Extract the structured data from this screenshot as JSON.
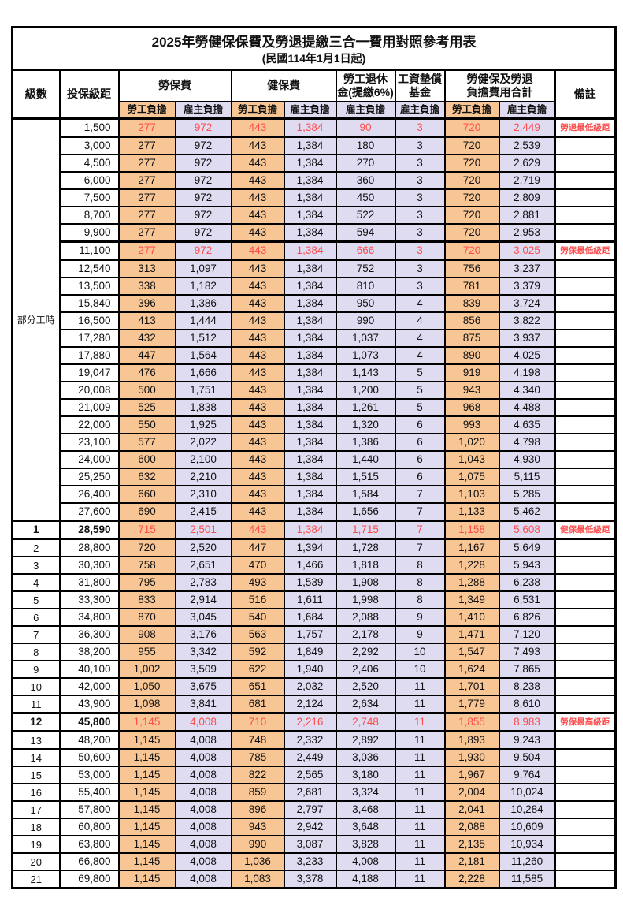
{
  "title": "2025年勞健保保費及勞退提繳三合一費用對照參考用表",
  "subtitle": "(民國114年1月1日起)",
  "header": {
    "level": "級數",
    "bracket": "投保級距",
    "labor_insurance": "勞保費",
    "health_insurance": "健保費",
    "pension_line1": "勞工退休",
    "pension_line2": "金(提繳6%)",
    "wage_fund_line1": "工資墊償",
    "wage_fund_line2": "基金",
    "total_line1": "勞健保及勞退",
    "total_line2": "負擔費用合計",
    "remarks": "備註",
    "employee": "勞工負擔",
    "employer": "雇主負擔"
  },
  "part_time": {
    "label": "部分工時",
    "rowspan": 23
  },
  "colors": {
    "employee_bg": "#F8C695",
    "employer_bg": "#DFDCF2",
    "highlight_text": "#FF4B4B",
    "border": "#000000"
  },
  "rows": [
    {
      "level": "",
      "bracket": "1,500",
      "cells": [
        "277",
        "972",
        "443",
        "1,384",
        "90",
        "3",
        "720",
        "2,449"
      ],
      "remark": "勞退最低級距",
      "red": true,
      "bold": false
    },
    {
      "level": "",
      "bracket": "3,000",
      "cells": [
        "277",
        "972",
        "443",
        "1,384",
        "180",
        "3",
        "720",
        "2,539"
      ],
      "remark": "",
      "red": false,
      "bold": false
    },
    {
      "level": "",
      "bracket": "4,500",
      "cells": [
        "277",
        "972",
        "443",
        "1,384",
        "270",
        "3",
        "720",
        "2,629"
      ],
      "remark": "",
      "red": false,
      "bold": false
    },
    {
      "level": "",
      "bracket": "6,000",
      "cells": [
        "277",
        "972",
        "443",
        "1,384",
        "360",
        "3",
        "720",
        "2,719"
      ],
      "remark": "",
      "red": false,
      "bold": false
    },
    {
      "level": "",
      "bracket": "7,500",
      "cells": [
        "277",
        "972",
        "443",
        "1,384",
        "450",
        "3",
        "720",
        "2,809"
      ],
      "remark": "",
      "red": false,
      "bold": false
    },
    {
      "level": "",
      "bracket": "8,700",
      "cells": [
        "277",
        "972",
        "443",
        "1,384",
        "522",
        "3",
        "720",
        "2,881"
      ],
      "remark": "",
      "red": false,
      "bold": false
    },
    {
      "level": "",
      "bracket": "9,900",
      "cells": [
        "277",
        "972",
        "443",
        "1,384",
        "594",
        "3",
        "720",
        "2,953"
      ],
      "remark": "",
      "red": false,
      "bold": false
    },
    {
      "level": "",
      "bracket": "11,100",
      "cells": [
        "277",
        "972",
        "443",
        "1,384",
        "666",
        "3",
        "720",
        "3,025"
      ],
      "remark": "勞保最低級距",
      "red": true,
      "bold": false
    },
    {
      "level": "",
      "bracket": "12,540",
      "cells": [
        "313",
        "1,097",
        "443",
        "1,384",
        "752",
        "3",
        "756",
        "3,237"
      ],
      "remark": "",
      "red": false,
      "bold": false
    },
    {
      "level": "",
      "bracket": "13,500",
      "cells": [
        "338",
        "1,182",
        "443",
        "1,384",
        "810",
        "3",
        "781",
        "3,379"
      ],
      "remark": "",
      "red": false,
      "bold": false
    },
    {
      "level": "",
      "bracket": "15,840",
      "cells": [
        "396",
        "1,386",
        "443",
        "1,384",
        "950",
        "4",
        "839",
        "3,724"
      ],
      "remark": "",
      "red": false,
      "bold": false
    },
    {
      "level": "",
      "bracket": "16,500",
      "cells": [
        "413",
        "1,444",
        "443",
        "1,384",
        "990",
        "4",
        "856",
        "3,822"
      ],
      "remark": "",
      "red": false,
      "bold": false
    },
    {
      "level": "",
      "bracket": "17,280",
      "cells": [
        "432",
        "1,512",
        "443",
        "1,384",
        "1,037",
        "4",
        "875",
        "3,937"
      ],
      "remark": "",
      "red": false,
      "bold": false
    },
    {
      "level": "",
      "bracket": "17,880",
      "cells": [
        "447",
        "1,564",
        "443",
        "1,384",
        "1,073",
        "4",
        "890",
        "4,025"
      ],
      "remark": "",
      "red": false,
      "bold": false
    },
    {
      "level": "",
      "bracket": "19,047",
      "cells": [
        "476",
        "1,666",
        "443",
        "1,384",
        "1,143",
        "5",
        "919",
        "4,198"
      ],
      "remark": "",
      "red": false,
      "bold": false
    },
    {
      "level": "",
      "bracket": "20,008",
      "cells": [
        "500",
        "1,751",
        "443",
        "1,384",
        "1,200",
        "5",
        "943",
        "4,340"
      ],
      "remark": "",
      "red": false,
      "bold": false
    },
    {
      "level": "",
      "bracket": "21,009",
      "cells": [
        "525",
        "1,838",
        "443",
        "1,384",
        "1,261",
        "5",
        "968",
        "4,488"
      ],
      "remark": "",
      "red": false,
      "bold": false
    },
    {
      "level": "",
      "bracket": "22,000",
      "cells": [
        "550",
        "1,925",
        "443",
        "1,384",
        "1,320",
        "6",
        "993",
        "4,635"
      ],
      "remark": "",
      "red": false,
      "bold": false
    },
    {
      "level": "",
      "bracket": "23,100",
      "cells": [
        "577",
        "2,022",
        "443",
        "1,384",
        "1,386",
        "6",
        "1,020",
        "4,798"
      ],
      "remark": "",
      "red": false,
      "bold": false
    },
    {
      "level": "",
      "bracket": "24,000",
      "cells": [
        "600",
        "2,100",
        "443",
        "1,384",
        "1,440",
        "6",
        "1,043",
        "4,930"
      ],
      "remark": "",
      "red": false,
      "bold": false
    },
    {
      "level": "",
      "bracket": "25,250",
      "cells": [
        "632",
        "2,210",
        "443",
        "1,384",
        "1,515",
        "6",
        "1,075",
        "5,115"
      ],
      "remark": "",
      "red": false,
      "bold": false
    },
    {
      "level": "",
      "bracket": "26,400",
      "cells": [
        "660",
        "2,310",
        "443",
        "1,384",
        "1,584",
        "7",
        "1,103",
        "5,285"
      ],
      "remark": "",
      "red": false,
      "bold": false
    },
    {
      "level": "",
      "bracket": "27,600",
      "cells": [
        "690",
        "2,415",
        "443",
        "1,384",
        "1,656",
        "7",
        "1,133",
        "5,462"
      ],
      "remark": "",
      "red": false,
      "bold": false
    },
    {
      "level": "1",
      "bracket": "28,590",
      "cells": [
        "715",
        "2,501",
        "443",
        "1,384",
        "1,715",
        "7",
        "1,158",
        "5,608"
      ],
      "remark": "健保最低級距",
      "red": true,
      "bold": true
    },
    {
      "level": "2",
      "bracket": "28,800",
      "cells": [
        "720",
        "2,520",
        "447",
        "1,394",
        "1,728",
        "7",
        "1,167",
        "5,649"
      ],
      "remark": "",
      "red": false,
      "bold": false
    },
    {
      "level": "3",
      "bracket": "30,300",
      "cells": [
        "758",
        "2,651",
        "470",
        "1,466",
        "1,818",
        "8",
        "1,228",
        "5,943"
      ],
      "remark": "",
      "red": false,
      "bold": false
    },
    {
      "level": "4",
      "bracket": "31,800",
      "cells": [
        "795",
        "2,783",
        "493",
        "1,539",
        "1,908",
        "8",
        "1,288",
        "6,238"
      ],
      "remark": "",
      "red": false,
      "bold": false
    },
    {
      "level": "5",
      "bracket": "33,300",
      "cells": [
        "833",
        "2,914",
        "516",
        "1,611",
        "1,998",
        "8",
        "1,349",
        "6,531"
      ],
      "remark": "",
      "red": false,
      "bold": false
    },
    {
      "level": "6",
      "bracket": "34,800",
      "cells": [
        "870",
        "3,045",
        "540",
        "1,684",
        "2,088",
        "9",
        "1,410",
        "6,826"
      ],
      "remark": "",
      "red": false,
      "bold": false
    },
    {
      "level": "7",
      "bracket": "36,300",
      "cells": [
        "908",
        "3,176",
        "563",
        "1,757",
        "2,178",
        "9",
        "1,471",
        "7,120"
      ],
      "remark": "",
      "red": false,
      "bold": false
    },
    {
      "level": "8",
      "bracket": "38,200",
      "cells": [
        "955",
        "3,342",
        "592",
        "1,849",
        "2,292",
        "10",
        "1,547",
        "7,493"
      ],
      "remark": "",
      "red": false,
      "bold": false
    },
    {
      "level": "9",
      "bracket": "40,100",
      "cells": [
        "1,002",
        "3,509",
        "622",
        "1,940",
        "2,406",
        "10",
        "1,624",
        "7,865"
      ],
      "remark": "",
      "red": false,
      "bold": false
    },
    {
      "level": "10",
      "bracket": "42,000",
      "cells": [
        "1,050",
        "3,675",
        "651",
        "2,032",
        "2,520",
        "11",
        "1,701",
        "8,238"
      ],
      "remark": "",
      "red": false,
      "bold": false
    },
    {
      "level": "11",
      "bracket": "43,900",
      "cells": [
        "1,098",
        "3,841",
        "681",
        "2,124",
        "2,634",
        "11",
        "1,779",
        "8,610"
      ],
      "remark": "",
      "red": false,
      "bold": false
    },
    {
      "level": "12",
      "bracket": "45,800",
      "cells": [
        "1,145",
        "4,008",
        "710",
        "2,216",
        "2,748",
        "11",
        "1,855",
        "8,983"
      ],
      "remark": "勞保最高級距",
      "red": true,
      "bold": true
    },
    {
      "level": "13",
      "bracket": "48,200",
      "cells": [
        "1,145",
        "4,008",
        "748",
        "2,332",
        "2,892",
        "11",
        "1,893",
        "9,243"
      ],
      "remark": "",
      "red": false,
      "bold": false
    },
    {
      "level": "14",
      "bracket": "50,600",
      "cells": [
        "1,145",
        "4,008",
        "785",
        "2,449",
        "3,036",
        "11",
        "1,930",
        "9,504"
      ],
      "remark": "",
      "red": false,
      "bold": false
    },
    {
      "level": "15",
      "bracket": "53,000",
      "cells": [
        "1,145",
        "4,008",
        "822",
        "2,565",
        "3,180",
        "11",
        "1,967",
        "9,764"
      ],
      "remark": "",
      "red": false,
      "bold": false
    },
    {
      "level": "16",
      "bracket": "55,400",
      "cells": [
        "1,145",
        "4,008",
        "859",
        "2,681",
        "3,324",
        "11",
        "2,004",
        "10,024"
      ],
      "remark": "",
      "red": false,
      "bold": false
    },
    {
      "level": "17",
      "bracket": "57,800",
      "cells": [
        "1,145",
        "4,008",
        "896",
        "2,797",
        "3,468",
        "11",
        "2,041",
        "10,284"
      ],
      "remark": "",
      "red": false,
      "bold": false
    },
    {
      "level": "18",
      "bracket": "60,800",
      "cells": [
        "1,145",
        "4,008",
        "943",
        "2,942",
        "3,648",
        "11",
        "2,088",
        "10,609"
      ],
      "remark": "",
      "red": false,
      "bold": false
    },
    {
      "level": "19",
      "bracket": "63,800",
      "cells": [
        "1,145",
        "4,008",
        "990",
        "3,087",
        "3,828",
        "11",
        "2,135",
        "10,934"
      ],
      "remark": "",
      "red": false,
      "bold": false
    },
    {
      "level": "20",
      "bracket": "66,800",
      "cells": [
        "1,145",
        "4,008",
        "1,036",
        "3,233",
        "4,008",
        "11",
        "2,181",
        "11,260"
      ],
      "remark": "",
      "red": false,
      "bold": false
    },
    {
      "level": "21",
      "bracket": "69,800",
      "cells": [
        "1,145",
        "4,008",
        "1,083",
        "3,378",
        "4,188",
        "11",
        "2,228",
        "11,585"
      ],
      "remark": "",
      "red": false,
      "bold": false
    }
  ]
}
